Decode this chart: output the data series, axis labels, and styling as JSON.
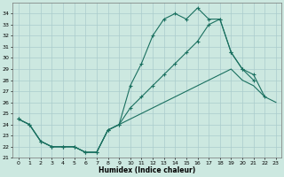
{
  "xlabel": "Humidex (Indice chaleur)",
  "background_color": "#cce8e0",
  "grid_color": "#aacccc",
  "line_color": "#1a7060",
  "hours": [
    0,
    1,
    2,
    3,
    4,
    5,
    6,
    7,
    8,
    9,
    10,
    11,
    12,
    13,
    14,
    15,
    16,
    17,
    18,
    19,
    20,
    21,
    22,
    23
  ],
  "line1": [
    24.5,
    24.0,
    22.5,
    22.0,
    22.0,
    22.0,
    21.5,
    21.5,
    23.5,
    24.0,
    27.5,
    29.5,
    32.0,
    33.5,
    34.0,
    33.5,
    34.5,
    33.5,
    33.5,
    30.5,
    29.0,
    28.0,
    null,
    null
  ],
  "line2": [
    24.5,
    24.0,
    22.5,
    22.0,
    22.0,
    22.0,
    21.5,
    21.5,
    23.5,
    24.0,
    25.5,
    26.5,
    27.5,
    28.5,
    29.5,
    30.5,
    31.5,
    33.0,
    33.5,
    30.5,
    29.0,
    28.5,
    26.5,
    null
  ],
  "line3": [
    24.5,
    24.0,
    22.5,
    22.0,
    22.0,
    22.0,
    21.5,
    21.5,
    23.5,
    24.0,
    24.5,
    25.0,
    25.5,
    26.0,
    26.5,
    27.0,
    27.5,
    28.0,
    28.5,
    29.0,
    28.0,
    27.5,
    26.5,
    26.0
  ],
  "ylim": [
    21,
    35
  ],
  "yticks": [
    21,
    22,
    23,
    24,
    25,
    26,
    27,
    28,
    29,
    30,
    31,
    32,
    33,
    34
  ],
  "xticks": [
    0,
    1,
    2,
    3,
    4,
    5,
    6,
    7,
    8,
    9,
    10,
    11,
    12,
    13,
    14,
    15,
    16,
    17,
    18,
    19,
    20,
    21,
    22,
    23
  ]
}
